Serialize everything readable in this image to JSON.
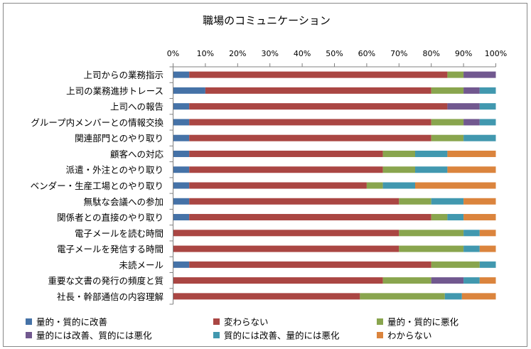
{
  "chart_data": {
    "type": "bar",
    "orientation": "horizontal",
    "stacked": "percent",
    "title": "職場のコミュニケーション",
    "xlim": [
      0,
      100
    ],
    "x_ticks": [
      "0%",
      "10%",
      "20%",
      "30%",
      "40%",
      "50%",
      "60%",
      "70%",
      "80%",
      "90%",
      "100%"
    ],
    "x_axis_position": "top",
    "grid": false,
    "legend_placement": "bottom",
    "categories": [
      "上司からの業務指示",
      "上司の業務進捗トレース",
      "上司への報告",
      "グループ内メンバーとの情報交換",
      "関連部門とのやり取り",
      "顧客への対応",
      "派遣・外注とのやり取り",
      "ベンダー・生産工場とのやり取り",
      "無駄な会議への参加",
      "関係者との直接のやり取り",
      "電子メールを読む時間",
      "電子メールを発信する時間",
      "未読メール",
      "重要な文書の発行の頻度と質",
      "社長・幹部通信の内容理解"
    ],
    "series": [
      {
        "name": "量的・質的に改善",
        "color": "#4572A7",
        "values": [
          5,
          10,
          5,
          5,
          5,
          5,
          5,
          5,
          5,
          5,
          0,
          0,
          5,
          0,
          0
        ]
      },
      {
        "name": "変わらない",
        "color": "#AA4643",
        "values": [
          80,
          70,
          80,
          75,
          75,
          60,
          60,
          55,
          65,
          75,
          70,
          70,
          75,
          65,
          57.9
        ]
      },
      {
        "name": "量的・質的に悪化",
        "color": "#89A54E",
        "values": [
          5,
          10,
          0,
          10,
          10,
          10,
          10,
          5,
          10,
          5,
          20,
          20,
          15,
          15,
          26.3
        ]
      },
      {
        "name": "量的には改善、質的には悪化",
        "color": "#71588F",
        "values": [
          10,
          5,
          10,
          5,
          0,
          0,
          0,
          0,
          0,
          0,
          0,
          0,
          0,
          10,
          0
        ]
      },
      {
        "name": "質的には改善、量的には悪化",
        "color": "#4198AF",
        "values": [
          0,
          5,
          5,
          5,
          10,
          10,
          10,
          10,
          10,
          5,
          5,
          5,
          5,
          5,
          5.3
        ]
      },
      {
        "name": "わからない",
        "color": "#DB843D",
        "values": [
          0,
          0,
          0,
          0,
          0,
          15,
          15,
          25,
          10,
          10,
          5,
          5,
          0,
          5,
          10.5
        ]
      }
    ]
  }
}
